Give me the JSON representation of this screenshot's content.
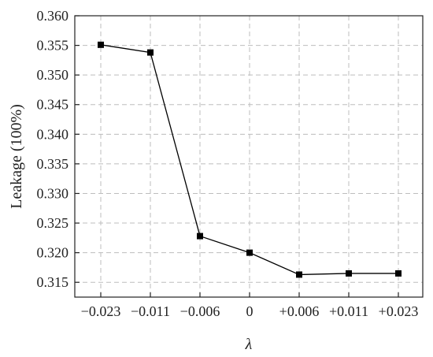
{
  "chart_data": {
    "type": "line",
    "title": "",
    "xlabel": "λ",
    "ylabel": "Leakage (100%)",
    "categories": [
      "−0.023",
      "−0.011",
      "−0.006",
      "0",
      "+0.006",
      "+0.011",
      "+0.023"
    ],
    "y_ticks": [
      "0.315",
      "0.320",
      "0.325",
      "0.330",
      "0.335",
      "0.340",
      "0.345",
      "0.350",
      "0.355",
      "0.360"
    ],
    "ylim": [
      0.3125,
      0.36
    ],
    "grid": true,
    "series": [
      {
        "marker": "square",
        "color": "#000000",
        "values": [
          0.3551,
          0.3538,
          0.3228,
          0.32,
          0.3163,
          0.3165,
          0.3165
        ]
      }
    ]
  }
}
